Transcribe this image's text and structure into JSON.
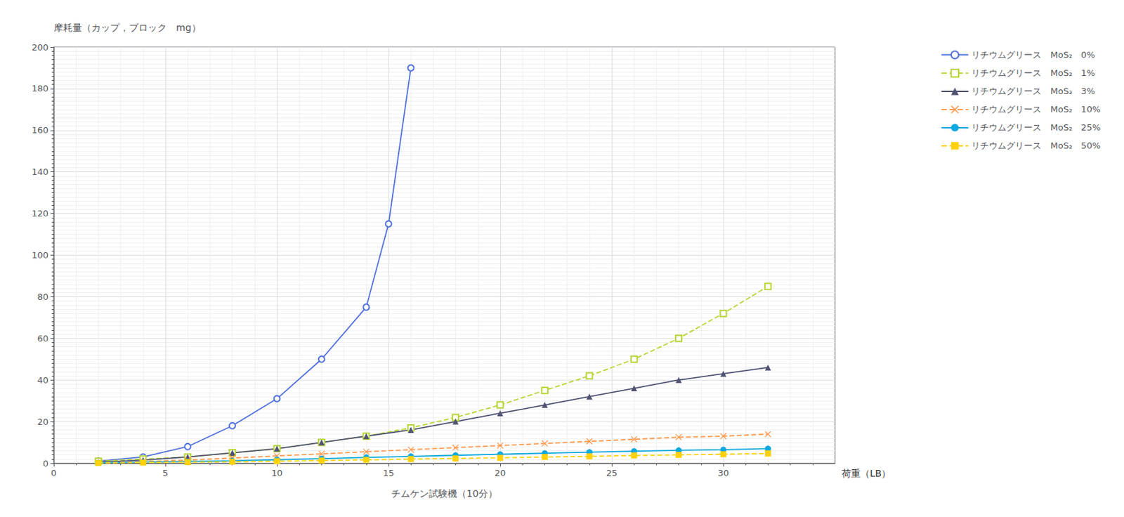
{
  "chart_data": {
    "type": "line",
    "ylabel": "摩耗量（カップ，ブロック　mg）",
    "xlabel": "チムケン試験機（10分）",
    "annotations": [
      "荷重（LB）"
    ],
    "xlim": [
      0,
      35
    ],
    "xticks": [
      0,
      5,
      10,
      15,
      20,
      25,
      30
    ],
    "ylim": [
      0,
      200
    ],
    "yticks": [
      0,
      20,
      40,
      60,
      80,
      100,
      120,
      140,
      160,
      180,
      200
    ],
    "grid": true,
    "legend": "right",
    "series": [
      {
        "name": "リチウムグリース　MoS₂　0%",
        "marker": "circle-open",
        "line_style": "solid",
        "x": [
          2,
          4,
          6,
          8,
          10,
          12,
          14,
          15,
          16
        ],
        "values": [
          1,
          3,
          8,
          18,
          31,
          50,
          75,
          115,
          190
        ]
      },
      {
        "name": "リチウムグリース　MoS₂　1%",
        "marker": "square-open",
        "line_style": "dashed",
        "x": [
          2,
          4,
          6,
          8,
          10,
          12,
          14,
          16,
          18,
          20,
          22,
          24,
          26,
          28,
          30,
          32
        ],
        "values": [
          1,
          2,
          3,
          5,
          7,
          10,
          13,
          17,
          22,
          28,
          35,
          42,
          50,
          60,
          72,
          85
        ]
      },
      {
        "name": "リチウムグリース　MoS₂　3%",
        "marker": "triangle",
        "line_style": "solid",
        "x": [
          2,
          4,
          6,
          8,
          10,
          12,
          14,
          16,
          18,
          20,
          22,
          24,
          26,
          28,
          30,
          32
        ],
        "values": [
          0.5,
          1.5,
          3,
          5,
          7,
          10,
          13,
          16,
          20,
          24,
          28,
          32,
          36,
          40,
          43,
          46
        ]
      },
      {
        "name": "リチウムグリース　MoS₂　10%",
        "marker": "x",
        "line_style": "dashed",
        "x": [
          2,
          4,
          6,
          8,
          10,
          12,
          14,
          16,
          18,
          20,
          22,
          24,
          26,
          28,
          30,
          32
        ],
        "values": [
          0.3,
          0.8,
          1.5,
          2.5,
          3.5,
          4.5,
          5.5,
          6.5,
          7.5,
          8.5,
          9.5,
          10.5,
          11.5,
          12.5,
          13.0,
          14.0
        ]
      },
      {
        "name": "リチウムグリース　MoS₂　25%",
        "marker": "circle",
        "line_style": "solid",
        "x": [
          2,
          4,
          6,
          8,
          10,
          12,
          14,
          16,
          18,
          20,
          22,
          24,
          26,
          28,
          30,
          32
        ],
        "values": [
          0.2,
          0.5,
          0.8,
          1.2,
          1.7,
          2.2,
          2.8,
          3.3,
          3.8,
          4.3,
          4.8,
          5.3,
          5.8,
          6.2,
          6.5,
          7.0
        ]
      },
      {
        "name": "リチウムグリース　MoS₂　50%",
        "marker": "square",
        "line_style": "dashed",
        "x": [
          2,
          4,
          6,
          8,
          10,
          12,
          14,
          16,
          18,
          20,
          22,
          24,
          26,
          28,
          30,
          32
        ],
        "values": [
          0.1,
          0.3,
          0.5,
          0.7,
          1.0,
          1.3,
          1.6,
          2.0,
          2.3,
          2.6,
          3.0,
          3.3,
          3.7,
          4.0,
          4.3,
          4.7
        ]
      }
    ]
  }
}
